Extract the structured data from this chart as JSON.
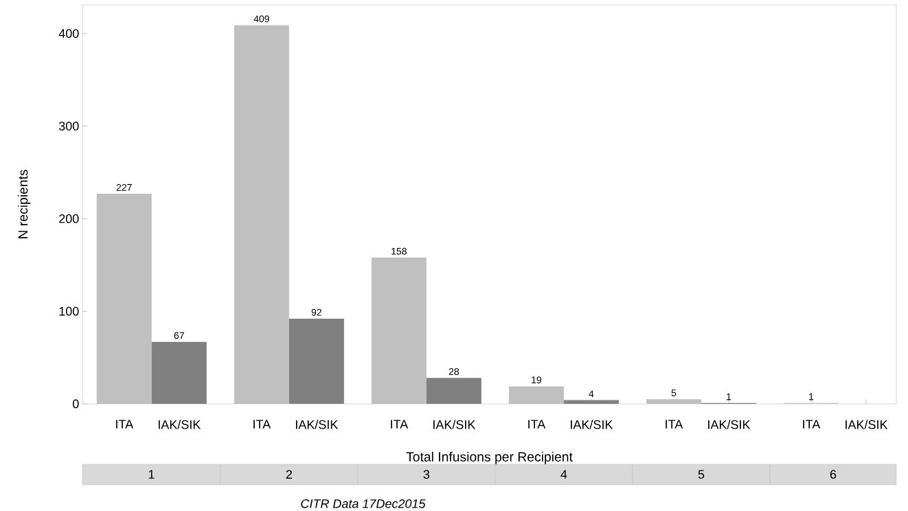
{
  "chart_data": {
    "type": "bar",
    "xlabel": "Total Infusions per Recipient",
    "ylabel": "N recipients",
    "categories": [
      "ITA",
      "IAK/SIK",
      "ITA",
      "IAK/SIK",
      "ITA",
      "IAK/SIK",
      "ITA",
      "IAK/SIK",
      "ITA",
      "IAK/SIK",
      "ITA",
      "IAK/SIK"
    ],
    "values": [
      227,
      67,
      409,
      92,
      158,
      28,
      19,
      4,
      5,
      1,
      1,
      0
    ],
    "colors": [
      "#c0c0c0",
      "#808080",
      "#c0c0c0",
      "#808080",
      "#c0c0c0",
      "#808080",
      "#c0c0c0",
      "#808080",
      "#c0c0c0",
      "#808080",
      "#c0c0c0",
      "#808080"
    ],
    "value_labels": [
      "227",
      "67",
      "409",
      "92",
      "158",
      "28",
      "19",
      "4",
      "5",
      "1",
      "1",
      null
    ],
    "ylim": [
      0,
      431
    ],
    "yticks": [
      0,
      100,
      200,
      300,
      400
    ],
    "grid": false,
    "annotations": [
      "1",
      "2",
      "3",
      "4",
      "5",
      "6",
      "CITR  Data 17Dec2015"
    ]
  }
}
